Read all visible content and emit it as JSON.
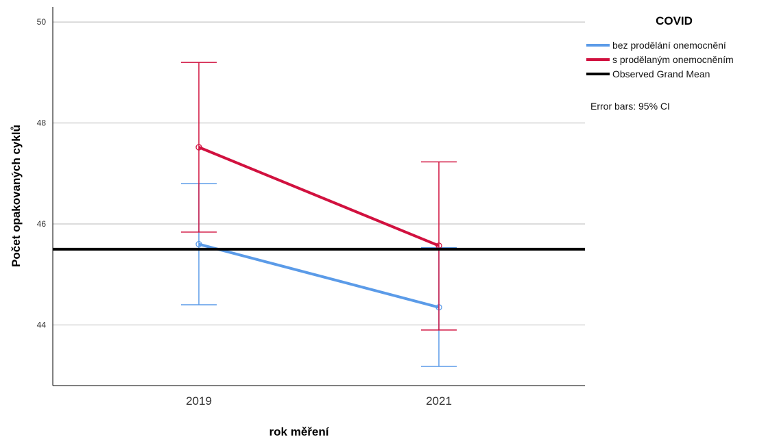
{
  "chart_data": {
    "type": "line",
    "xlabel": "rok měření",
    "ylabel": "Počet opakovaných cyklů",
    "categories": [
      "2019",
      "2021"
    ],
    "yticks": [
      "44",
      "46",
      "48",
      "50"
    ],
    "ylim": [
      42.8,
      50.3
    ],
    "grid": true,
    "legend": {
      "title": "COVID",
      "placement": "right",
      "entries": [
        "bez prodělání onemocnění",
        "s prodělaným onemocněním",
        "Observed Grand Mean"
      ]
    },
    "note": "Error bars: 95% CI",
    "series": [
      {
        "name": "bez prodělání onemocnění",
        "color": "#5b9be8",
        "values": [
          45.6,
          44.35
        ],
        "ci_low": [
          44.4,
          43.18
        ],
        "ci_high": [
          46.8,
          45.53
        ]
      },
      {
        "name": "s prodělaným onemocněním",
        "color": "#d1113f",
        "values": [
          47.52,
          45.57
        ],
        "ci_low": [
          45.84,
          43.9
        ],
        "ci_high": [
          49.2,
          47.23
        ]
      }
    ],
    "grand_mean": {
      "name": "Observed Grand Mean",
      "value": 45.5,
      "color": "#000000"
    }
  }
}
